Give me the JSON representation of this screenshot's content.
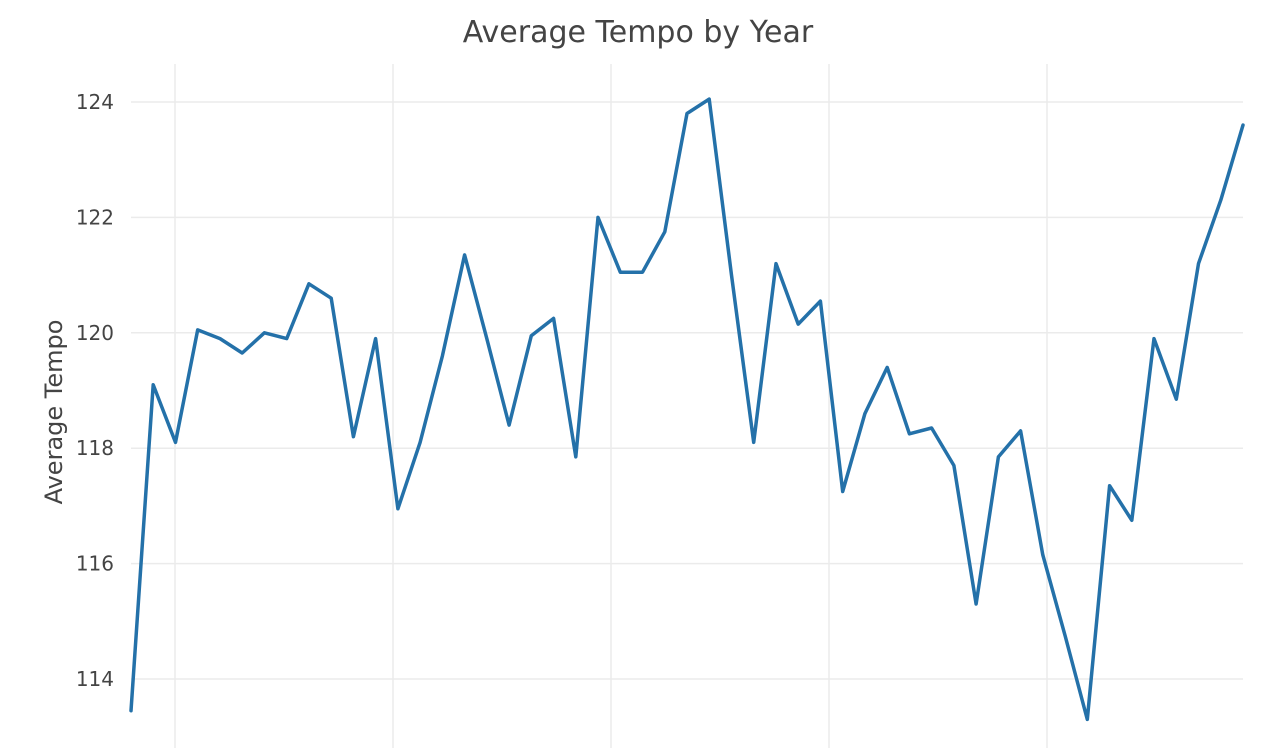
{
  "chart_data": {
    "type": "line",
    "title": "Average Tempo by Year",
    "xlabel": "",
    "ylabel": "Average Tempo",
    "ylim": [
      113.5,
      124.6
    ],
    "yticks": [
      114,
      116,
      118,
      120,
      122,
      124
    ],
    "x_gridlines": 5,
    "grid": true,
    "legend": "none",
    "colors": {
      "line": "#2471a9",
      "grid": "#ebebeb",
      "text": "#444444"
    },
    "series": [
      {
        "values": [
          113.45,
          119.1,
          118.1,
          120.05,
          119.9,
          119.65,
          120.0,
          119.9,
          120.85,
          120.6,
          118.2,
          119.9,
          116.95,
          118.1,
          119.6,
          121.35,
          119.9,
          118.4,
          119.95,
          120.25,
          117.85,
          122.0,
          121.05,
          121.05,
          121.75,
          123.8,
          124.05,
          121.0,
          118.1,
          121.2,
          120.15,
          120.55,
          117.25,
          118.6,
          119.4,
          118.25,
          118.35,
          117.7,
          115.3,
          117.85,
          118.3,
          116.15,
          114.75,
          113.3,
          117.35,
          116.75,
          119.9,
          118.85,
          121.2,
          122.3,
          123.6
        ]
      }
    ]
  }
}
